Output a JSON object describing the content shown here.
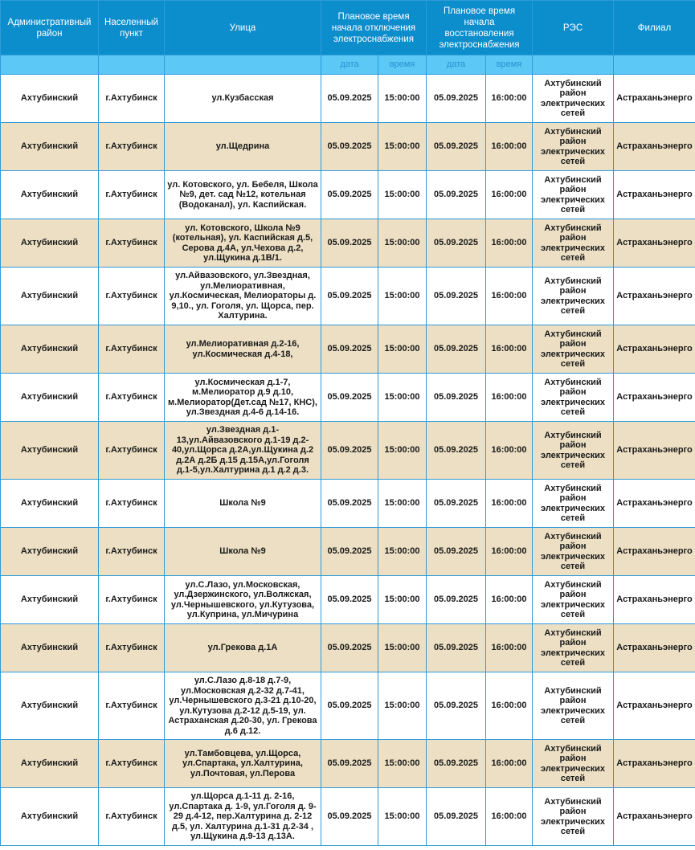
{
  "header": {
    "district": "Административный район",
    "locality": "Населенный пункт",
    "street": "Улица",
    "off_time": "Плановое время начала отключения электроснабжения",
    "restore_time": "Плановое время начала восстановления электроснабжения",
    "res": "РЭС",
    "branch": "Филиал",
    "date": "дата",
    "time": "время"
  },
  "rows": [
    {
      "district": "Ахтубинский",
      "locality": "г.Ахтубинск",
      "street": "ул.Кузбасская",
      "off_date": "05.09.2025",
      "off_time": "15:00:00",
      "on_date": "05.09.2025",
      "on_time": "16:00:00",
      "res": "Ахтубинский район электрических сетей",
      "branch": "Астраханьэнерго"
    },
    {
      "district": "Ахтубинский",
      "locality": "г.Ахтубинск",
      "street": "ул.Щедрина",
      "off_date": "05.09.2025",
      "off_time": "15:00:00",
      "on_date": "05.09.2025",
      "on_time": "16:00:00",
      "res": "Ахтубинский район электрических сетей",
      "branch": "Астраханьэнерго"
    },
    {
      "district": "Ахтубинский",
      "locality": "г.Ахтубинск",
      "street": "ул. Котовского, ул. Бебеля, Школа №9, дет. сад №12, котельная (Водоканал), ул. Каспийская.",
      "off_date": "05.09.2025",
      "off_time": "15:00:00",
      "on_date": "05.09.2025",
      "on_time": "16:00:00",
      "res": "Ахтубинский район электрических сетей",
      "branch": "Астраханьэнерго"
    },
    {
      "district": "Ахтубинский",
      "locality": "г.Ахтубинск",
      "street": "ул. Котовского, Школа №9 (котельная), ул. Каспийская д.5, Серова д.4А, ул.Чехова д.2, ул.Щукина д.1В/1.",
      "off_date": "05.09.2025",
      "off_time": "15:00:00",
      "on_date": "05.09.2025",
      "on_time": "16:00:00",
      "res": "Ахтубинский район электрических сетей",
      "branch": "Астраханьэнерго"
    },
    {
      "district": "Ахтубинский",
      "locality": "г.Ахтубинск",
      "street": "ул.Айвазовского, ул.Звездная, ул.Мелиоративная, ул.Космическая, Мелиораторы д. 9,10., ул. Гоголя, ул. Щорса, пер. Халтурина.",
      "off_date": "05.09.2025",
      "off_time": "15:00:00",
      "on_date": "05.09.2025",
      "on_time": "16:00:00",
      "res": "Ахтубинский район электрических сетей",
      "branch": "Астраханьэнерго"
    },
    {
      "district": "Ахтубинский",
      "locality": "г.Ахтубинск",
      "street": "ул.Мелиоративная д.2-16, ул.Космическая д.4-18,",
      "off_date": "05.09.2025",
      "off_time": "15:00:00",
      "on_date": "05.09.2025",
      "on_time": "16:00:00",
      "res": "Ахтубинский район электрических сетей",
      "branch": "Астраханьэнерго"
    },
    {
      "district": "Ахтубинский",
      "locality": "г.Ахтубинск",
      "street": "ул.Космическая д.1-7, м.Мелиоратор д.9 д.10, м.Мелиоратор(Дет.сад №17, КНС), ул.Звездная д.4-6 д.14-16.",
      "off_date": "05.09.2025",
      "off_time": "15:00:00",
      "on_date": "05.09.2025",
      "on_time": "16:00:00",
      "res": "Ахтубинский район электрических сетей",
      "branch": "Астраханьэнерго"
    },
    {
      "district": "Ахтубинский",
      "locality": "г.Ахтубинск",
      "street": "ул.Звездная д.1-13,ул.Айвазовского д.1-19 д.2-40,ул.Щорса д.2А,ул.Щукина д.2 д.2А д.2Б д.15 д.15А,ул.Гоголя д.1-5,ул.Халтурина д.1 д.2 д.3.",
      "off_date": "05.09.2025",
      "off_time": "15:00:00",
      "on_date": "05.09.2025",
      "on_time": "16:00:00",
      "res": "Ахтубинский район электрических сетей",
      "branch": "Астраханьэнерго"
    },
    {
      "district": "Ахтубинский",
      "locality": "г.Ахтубинск",
      "street": "Школа №9",
      "off_date": "05.09.2025",
      "off_time": "15:00:00",
      "on_date": "05.09.2025",
      "on_time": "16:00:00",
      "res": "Ахтубинский район электрических сетей",
      "branch": "Астраханьэнерго"
    },
    {
      "district": "Ахтубинский",
      "locality": "г.Ахтубинск",
      "street": "Школа №9",
      "off_date": "05.09.2025",
      "off_time": "15:00:00",
      "on_date": "05.09.2025",
      "on_time": "16:00:00",
      "res": "Ахтубинский район электрических сетей",
      "branch": "Астраханьэнерго"
    },
    {
      "district": "Ахтубинский",
      "locality": "г.Ахтубинск",
      "street": "ул.С.Лазо, ул.Московская, ул.Дзержинского, ул.Волжская, ул.Чернышевского, ул.Кутузова, ул.Куприна, ул.Мичурина",
      "off_date": "05.09.2025",
      "off_time": "15:00:00",
      "on_date": "05.09.2025",
      "on_time": "16:00:00",
      "res": "Ахтубинский район электрических сетей",
      "branch": "Астраханьэнерго"
    },
    {
      "district": "Ахтубинский",
      "locality": "г.Ахтубинск",
      "street": "ул.Грекова д.1А",
      "off_date": "05.09.2025",
      "off_time": "15:00:00",
      "on_date": "05.09.2025",
      "on_time": "16:00:00",
      "res": "Ахтубинский район электрических сетей",
      "branch": "Астраханьэнерго"
    },
    {
      "district": "Ахтубинский",
      "locality": "г.Ахтубинск",
      "street": "ул.С.Лазо д.8-18 д.7-9, ул.Московская д.2-32 д.7-41, ул.Чернышевского д.3-21 д.10-20, ул.Кутузова д.2-12 д.5-19, ул. Астраханская д.20-30, ул. Грекова д.6 д.12.",
      "off_date": "05.09.2025",
      "off_time": "15:00:00",
      "on_date": "05.09.2025",
      "on_time": "16:00:00",
      "res": "Ахтубинский район электрических сетей",
      "branch": "Астраханьэнерго"
    },
    {
      "district": "Ахтубинский",
      "locality": "г.Ахтубинск",
      "street": "ул.Тамбовцева, ул.Щорса, ул.Спартака, ул.Халтурина, ул.Почтовая, ул.Перова",
      "off_date": "05.09.2025",
      "off_time": "15:00:00",
      "on_date": "05.09.2025",
      "on_time": "16:00:00",
      "res": "Ахтубинский район электрических сетей",
      "branch": "Астраханьэнерго"
    },
    {
      "district": "Ахтубинский",
      "locality": "г.Ахтубинск",
      "street": "ул.Щорса д.1-11 д. 2-16, ул.Спартака д. 1-9, ул.Гоголя д. 9-29 д.4-12, пер.Халтурина д. 2-12 д.5, ул. Халтурина д.1-31 д.2-34 , ул.Щукина д.9-13 д.13А.",
      "off_date": "05.09.2025",
      "off_time": "15:00:00",
      "on_date": "05.09.2025",
      "on_time": "16:00:00",
      "res": "Ахтубинский район электрических сетей",
      "branch": "Астраханьэнерго"
    }
  ]
}
